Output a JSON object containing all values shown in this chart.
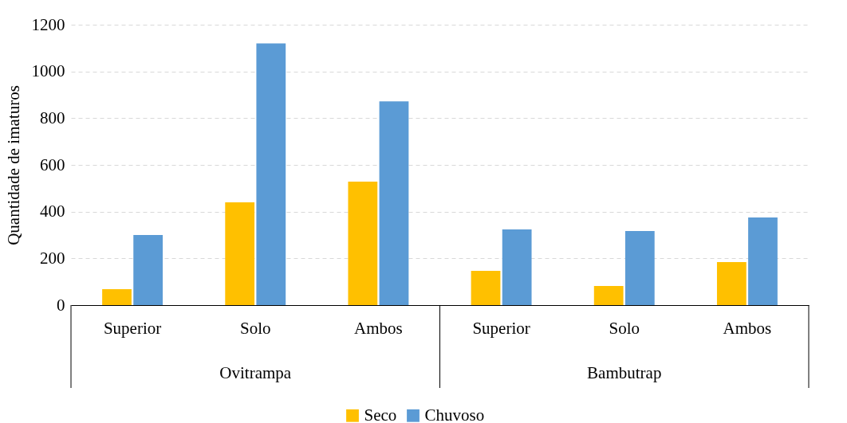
{
  "chart_data": {
    "type": "bar",
    "ylabel": "Quantidade de imaturos",
    "categories": [
      "Superior",
      "Solo",
      "Ambos",
      "Superior",
      "Solo",
      "Ambos"
    ],
    "series": [
      {
        "name": "Seco",
        "color": "#ffc000",
        "values": [
          68,
          440,
          528,
          147,
          82,
          184
        ]
      },
      {
        "name": "Chuvoso",
        "color": "#5b9bd5",
        "values": [
          300,
          1120,
          872,
          324,
          317,
          375
        ]
      }
    ],
    "annotations": [
      "Ovitrampa",
      "Bambutrap"
    ],
    "ylim": [
      0,
      1200
    ],
    "yticks": [
      0,
      200,
      400,
      600,
      800,
      1000,
      1200
    ],
    "grid": "y",
    "legend": "bottom"
  }
}
